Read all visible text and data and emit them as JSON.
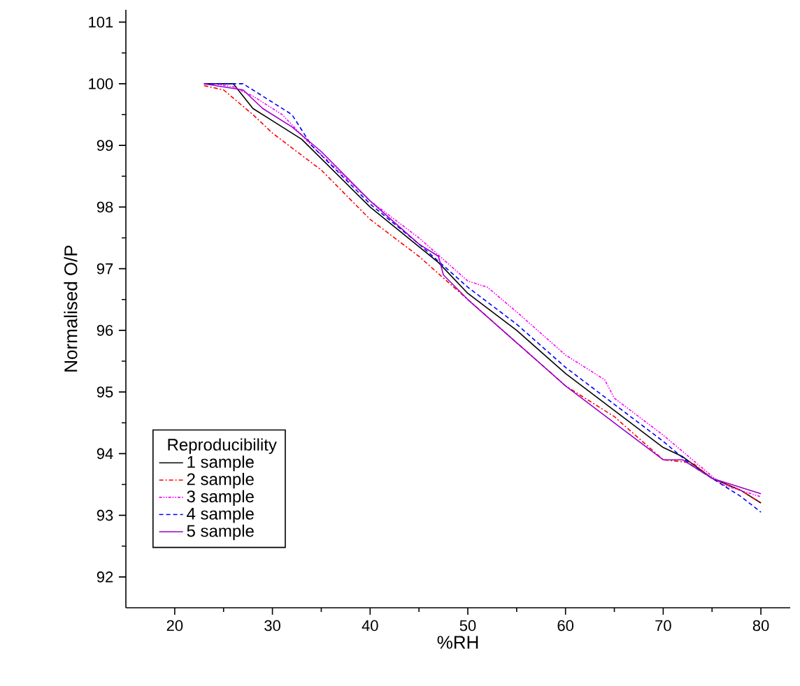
{
  "chart_data": {
    "type": "line",
    "xlabel": "%RH",
    "ylabel": "Normalised O/P",
    "legend_title": "Reproducibility",
    "legend": "bottom left",
    "xlim": [
      15,
      83
    ],
    "ylim": [
      91.5,
      101.2
    ],
    "xticks": [
      20,
      30,
      40,
      50,
      60,
      70,
      80
    ],
    "yticks": [
      92,
      93,
      94,
      95,
      96,
      97,
      98,
      99,
      100,
      101
    ],
    "grid": false,
    "marker": "none",
    "series": [
      {
        "name": "1  sample",
        "color": "#000000",
        "line_style": "solid",
        "x": [
          23,
          26,
          28,
          30,
          33,
          40,
          47,
          50,
          55,
          60,
          65,
          70,
          72,
          75,
          78,
          80
        ],
        "values": [
          100,
          100,
          99.6,
          99.4,
          99.1,
          98.0,
          97.1,
          96.6,
          96.0,
          95.3,
          94.7,
          94.1,
          93.95,
          93.6,
          93.4,
          93.2
        ]
      },
      {
        "name": "2  sample",
        "color": "#ff0000",
        "line_style": "dashdot",
        "x": [
          23,
          25,
          28,
          30,
          35,
          40,
          45,
          50,
          55,
          60,
          65,
          70,
          73,
          75,
          78,
          80
        ],
        "values": [
          99.97,
          99.9,
          99.5,
          99.2,
          98.6,
          97.8,
          97.2,
          96.5,
          95.8,
          95.1,
          94.6,
          93.9,
          93.85,
          93.6,
          93.4,
          93.2
        ]
      },
      {
        "name": "3  sample",
        "color": "#ff00ff",
        "line_style": "dashdotdot",
        "x": [
          24,
          26,
          28,
          31,
          34,
          40,
          45,
          50,
          52,
          55,
          60,
          64,
          65,
          70,
          73,
          76,
          80
        ],
        "values": [
          100,
          99.95,
          99.8,
          99.5,
          99.0,
          98.1,
          97.5,
          96.8,
          96.7,
          96.3,
          95.6,
          95.2,
          94.9,
          94.3,
          93.9,
          93.5,
          93.3
        ]
      },
      {
        "name": "4  sample",
        "color": "#0000ff",
        "line_style": "dashed",
        "x": [
          23,
          27,
          29,
          32,
          34,
          40,
          45,
          50,
          55,
          60,
          65,
          70,
          73,
          76,
          78,
          80
        ],
        "values": [
          100,
          100,
          99.8,
          99.5,
          99.0,
          98.05,
          97.4,
          96.7,
          96.1,
          95.4,
          94.8,
          94.2,
          93.8,
          93.5,
          93.3,
          93.05
        ]
      },
      {
        "name": "5  sample",
        "color": "#9900cc",
        "line_style": "solid",
        "x": [
          23,
          27,
          29,
          32,
          35,
          40,
          45,
          47,
          47.5,
          50,
          55,
          60,
          65,
          70,
          72,
          75,
          78,
          80
        ],
        "values": [
          100,
          99.9,
          99.6,
          99.3,
          98.9,
          98.1,
          97.4,
          97.2,
          96.9,
          96.5,
          95.8,
          95.1,
          94.5,
          93.9,
          93.9,
          93.6,
          93.45,
          93.35
        ]
      }
    ]
  }
}
